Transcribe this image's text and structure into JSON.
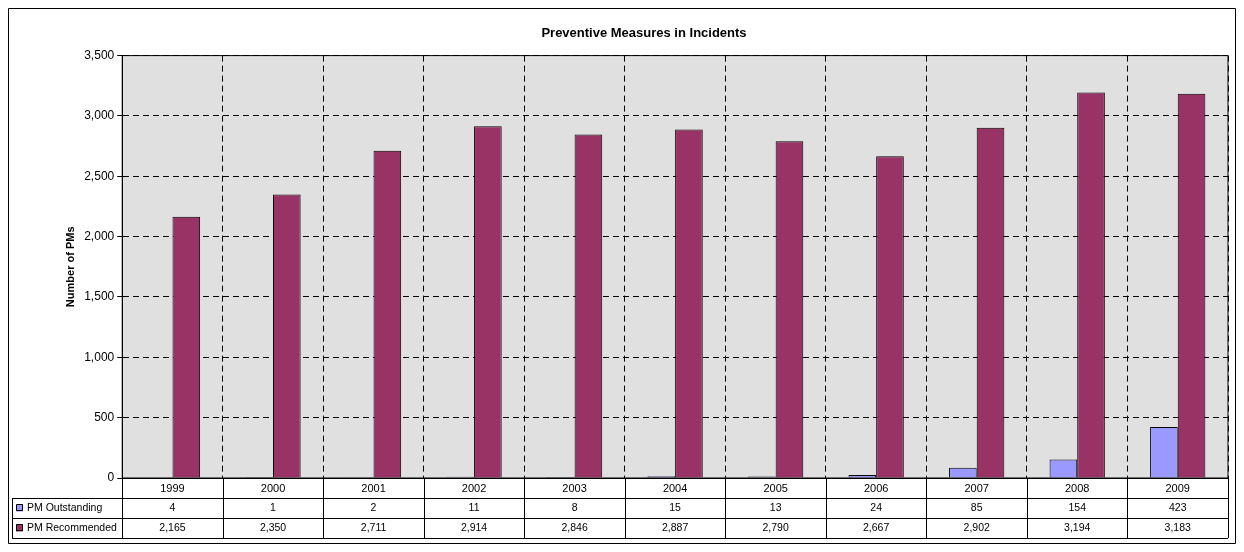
{
  "chart_data": {
    "type": "bar",
    "title": "Preventive Measures in Incidents",
    "ylabel": "Number of PMs",
    "categories": [
      "1999",
      "2000",
      "2001",
      "2002",
      "2003",
      "2004",
      "2005",
      "2006",
      "2007",
      "2008",
      "2009"
    ],
    "series": [
      {
        "name": "PM Outstanding",
        "color": "#9999ff",
        "values": [
          4,
          1,
          2,
          11,
          8,
          15,
          13,
          24,
          85,
          154,
          423
        ],
        "value_labels": [
          "4",
          "1",
          "2",
          "11",
          "8",
          "15",
          "13",
          "24",
          "85",
          "154",
          "423"
        ]
      },
      {
        "name": "PM Recommended",
        "color": "#993366",
        "values": [
          2165,
          2350,
          2711,
          2914,
          2846,
          2887,
          2790,
          2667,
          2902,
          3194,
          3183
        ],
        "value_labels": [
          "2,165",
          "2,350",
          "2,711",
          "2,914",
          "2,846",
          "2,887",
          "2,790",
          "2,667",
          "2,902",
          "3,194",
          "3,183"
        ]
      }
    ],
    "ylim": [
      0,
      3500
    ],
    "yticks": [
      0,
      500,
      {
        "value": 1000,
        "label": "1,000"
      },
      {
        "value": 1500,
        "label": "1,500"
      },
      {
        "value": 2000,
        "label": "2,000"
      },
      {
        "value": 2500,
        "label": "2,500"
      },
      {
        "value": 3000,
        "label": "3,000"
      },
      {
        "value": 3500,
        "label": "3,500"
      }
    ],
    "grid": true,
    "legend": "bottom"
  }
}
